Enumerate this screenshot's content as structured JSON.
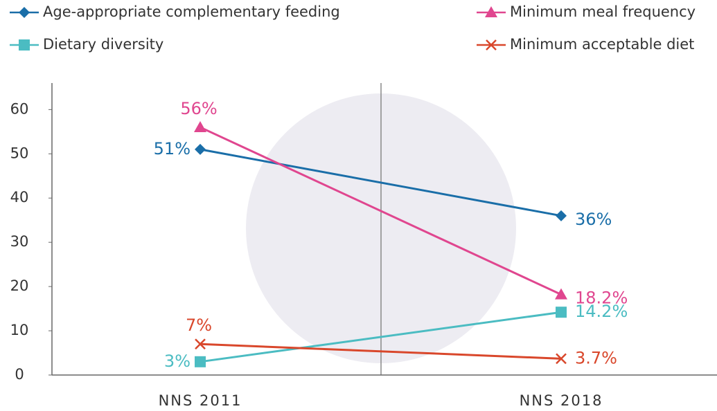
{
  "chart_data": {
    "type": "line",
    "categories": [
      "NNS 2011",
      "NNS 2018"
    ],
    "series": [
      {
        "name": "Age-appropriate complementary feeding",
        "color": "#1a6ea8",
        "marker": "diamond",
        "values": [
          51,
          36
        ],
        "value_labels": [
          "51%",
          "36%"
        ]
      },
      {
        "name": "Minimum meal frequency",
        "color": "#e0468f",
        "marker": "triangle",
        "values": [
          56,
          18.2
        ],
        "value_labels": [
          "56%",
          "18.2%"
        ]
      },
      {
        "name": "Dietary diversity",
        "color": "#4bbcc2",
        "marker": "square",
        "values": [
          3,
          14.2
        ],
        "value_labels": [
          "3%",
          "14.2%"
        ]
      },
      {
        "name": "Minimum acceptable diet",
        "color": "#d9472b",
        "marker": "x",
        "values": [
          7,
          3.7
        ],
        "value_labels": [
          "7%",
          "3.7%"
        ]
      }
    ],
    "ylim": [
      0,
      66
    ],
    "yticks": [
      0,
      10,
      20,
      30,
      40,
      50,
      60
    ],
    "grid": false
  }
}
